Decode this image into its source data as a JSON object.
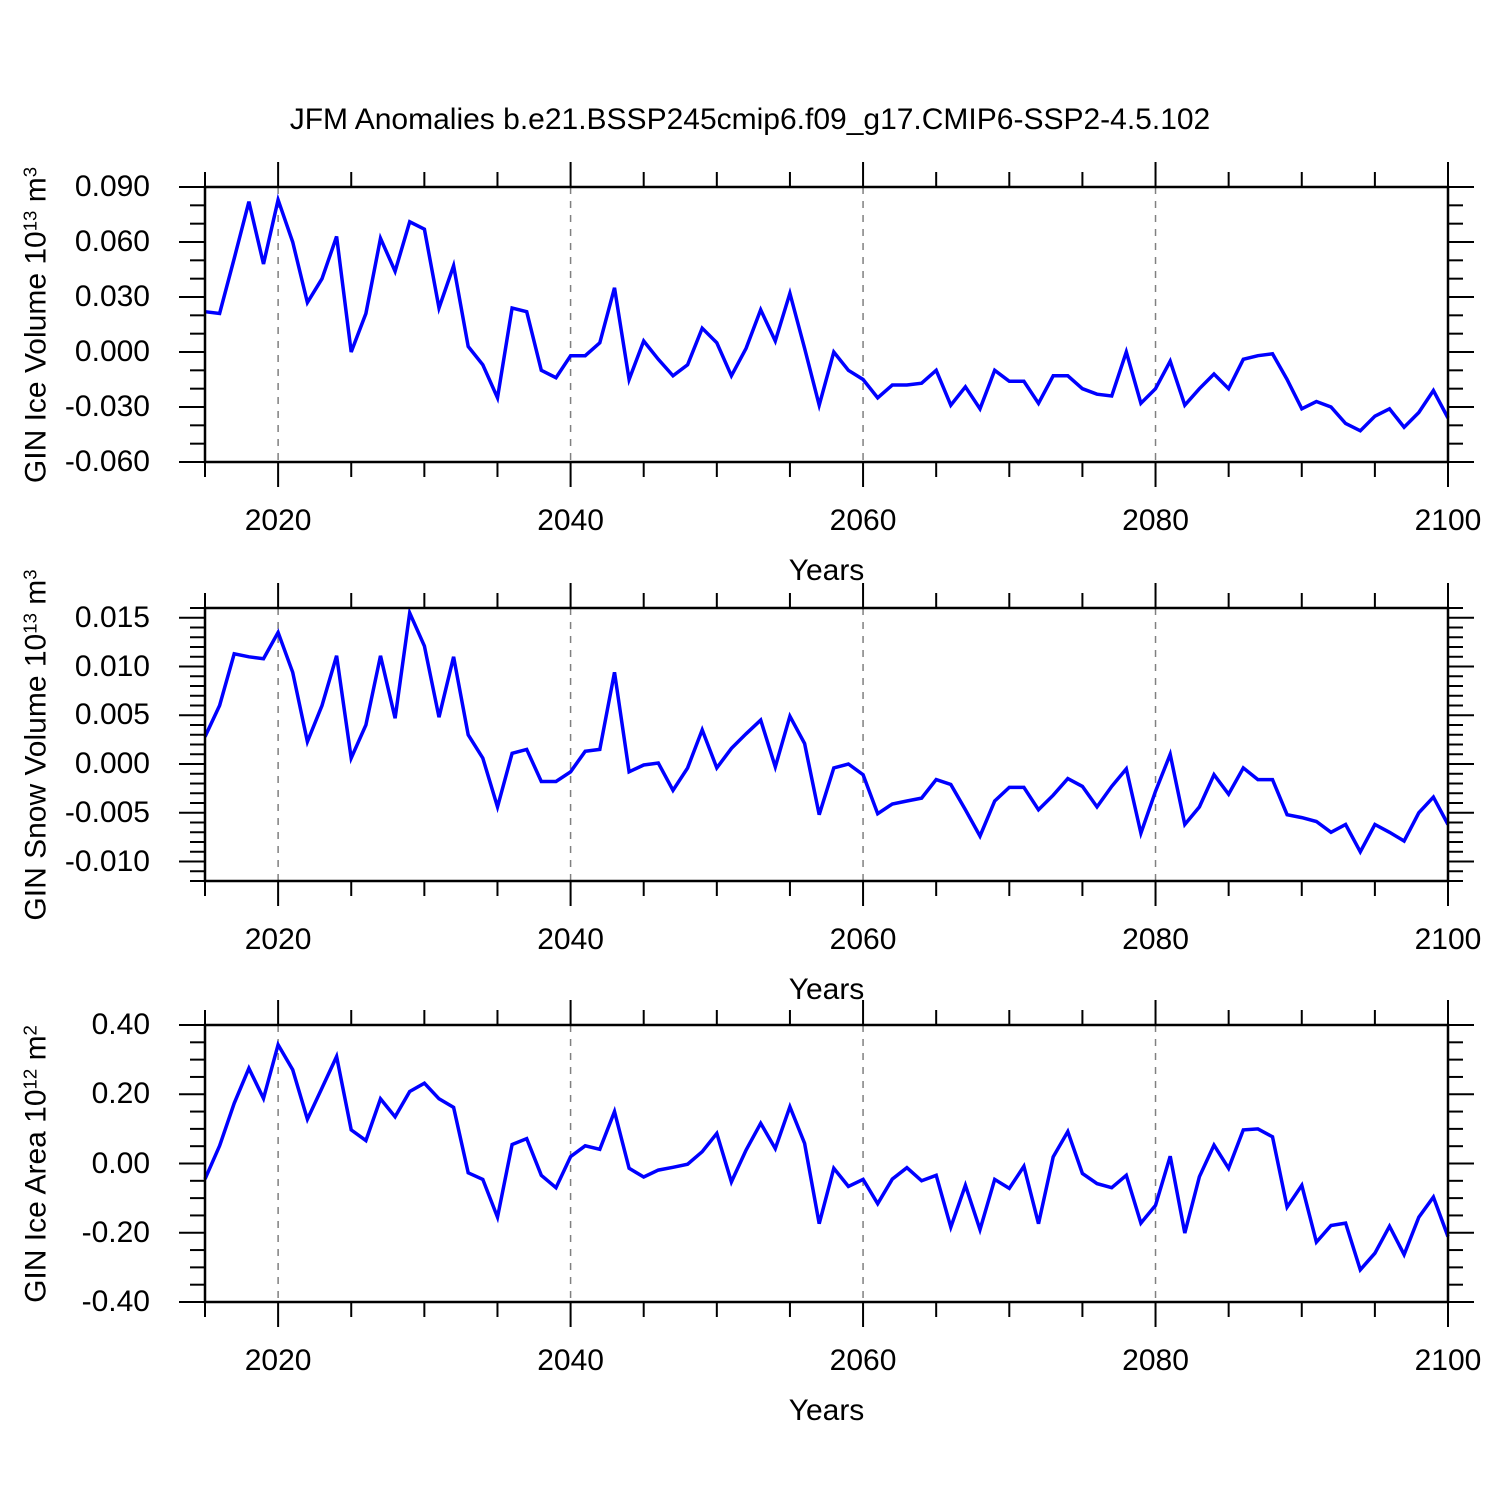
{
  "title": "JFM Anomalies b.e21.BSSP245cmip6.f09_g17.CMIP6-SSP2-4.5.102",
  "line_color": "#0000ff",
  "chart_data": [
    {
      "id": "gin-ice-volume",
      "type": "line",
      "ylabel": {
        "label": "GIN Ice Volume",
        "scale": "10",
        "scale_exp": "13",
        "unit": "m",
        "unit_exp": "3"
      },
      "xlabel": "Years",
      "x_start": 2015,
      "x_end": 2100,
      "x_step": 1,
      "ylim": [
        -0.06,
        0.09
      ],
      "ytick_labels": [
        "0.090",
        "0.060",
        "0.030",
        "0.000",
        "-0.030",
        "-0.060"
      ],
      "ytick_values": [
        0.09,
        0.06,
        0.03,
        0.0,
        -0.03,
        -0.06
      ],
      "y_minor_step": 0.01,
      "xtick_labels": [
        "2020",
        "2040",
        "2060",
        "2080",
        "2100"
      ],
      "xtick_values": [
        2020,
        2040,
        2060,
        2080,
        2100
      ],
      "x_minor_step": 5,
      "gridline_x": [
        2020,
        2040,
        2060,
        2080
      ],
      "grid": true,
      "legend": "none",
      "values": [
        0.022,
        0.021,
        0.051,
        0.082,
        0.048,
        0.083,
        0.06,
        0.027,
        0.04,
        0.063,
        0.0,
        0.021,
        0.062,
        0.044,
        0.071,
        0.067,
        0.024,
        0.047,
        0.003,
        -0.007,
        -0.025,
        0.024,
        0.022,
        -0.01,
        -0.014,
        -0.002,
        -0.002,
        0.005,
        0.035,
        -0.015,
        0.006,
        -0.004,
        -0.013,
        -0.007,
        0.013,
        0.005,
        -0.013,
        0.002,
        0.023,
        0.006,
        0.032,
        0.002,
        -0.029,
        0.0,
        -0.01,
        -0.015,
        -0.025,
        -0.018,
        -0.018,
        -0.017,
        -0.01,
        -0.029,
        -0.019,
        -0.031,
        -0.01,
        -0.016,
        -0.016,
        -0.028,
        -0.013,
        -0.013,
        -0.02,
        -0.023,
        -0.024,
        0.0,
        -0.028,
        -0.02,
        -0.005,
        -0.029,
        -0.02,
        -0.012,
        -0.02,
        -0.004,
        -0.002,
        -0.001,
        -0.015,
        -0.031,
        -0.027,
        -0.03,
        -0.039,
        -0.043,
        -0.035,
        -0.031,
        -0.041,
        -0.033,
        -0.021,
        -0.036
      ]
    },
    {
      "id": "gin-snow-volume",
      "type": "line",
      "ylabel": {
        "label": "GIN Snow Volume",
        "scale": "10",
        "scale_exp": "13",
        "unit": "m",
        "unit_exp": "3"
      },
      "xlabel": "Years",
      "x_start": 2015,
      "x_end": 2100,
      "x_step": 1,
      "ylim": [
        -0.012,
        0.016
      ],
      "ytick_labels": [
        "0.015",
        "0.010",
        "0.005",
        "0.000",
        "-0.005",
        "-0.010"
      ],
      "ytick_values": [
        0.015,
        0.01,
        0.005,
        0.0,
        -0.005,
        -0.01
      ],
      "y_minor_step": 0.001,
      "xtick_labels": [
        "2020",
        "2040",
        "2060",
        "2080",
        "2100"
      ],
      "xtick_values": [
        2020,
        2040,
        2060,
        2080,
        2100
      ],
      "x_minor_step": 5,
      "gridline_x": [
        2020,
        2040,
        2060,
        2080
      ],
      "grid": true,
      "legend": "none",
      "values": [
        0.0028,
        0.006,
        0.0113,
        0.011,
        0.0108,
        0.0135,
        0.0094,
        0.0023,
        0.006,
        0.0111,
        0.0006,
        0.004,
        0.0111,
        0.0047,
        0.0155,
        0.0121,
        0.0048,
        0.011,
        0.003,
        0.0006,
        -0.0044,
        0.0011,
        0.0015,
        -0.0018,
        -0.0018,
        -0.0008,
        0.0013,
        0.0015,
        0.0094,
        -0.0008,
        -0.0001,
        0.0001,
        -0.0027,
        -0.0004,
        0.0035,
        -0.0004,
        0.0016,
        0.0031,
        0.0045,
        -0.0003,
        0.0049,
        0.0021,
        -0.0052,
        -0.0004,
        0.0,
        -0.0011,
        -0.0051,
        -0.0041,
        -0.0038,
        -0.0035,
        -0.0016,
        -0.0021,
        -0.0047,
        -0.0074,
        -0.0038,
        -0.0024,
        -0.0024,
        -0.0047,
        -0.0032,
        -0.0015,
        -0.0023,
        -0.0044,
        -0.0023,
        -0.0005,
        -0.0071,
        -0.0028,
        0.001,
        -0.0062,
        -0.0044,
        -0.0011,
        -0.0031,
        -0.0004,
        -0.0016,
        -0.0016,
        -0.0052,
        -0.0055,
        -0.0059,
        -0.007,
        -0.0062,
        -0.009,
        -0.0062,
        -0.007,
        -0.0079,
        -0.005,
        -0.0034,
        -0.0062
      ]
    },
    {
      "id": "gin-ice-area",
      "type": "line",
      "ylabel": {
        "label": "GIN Ice Area",
        "scale": "10",
        "scale_exp": "12",
        "unit": "m",
        "unit_exp": "2"
      },
      "xlabel": "Years",
      "x_start": 2015,
      "x_end": 2100,
      "x_step": 1,
      "ylim": [
        -0.4,
        0.4
      ],
      "ytick_labels": [
        "0.40",
        "0.20",
        "0.00",
        "-0.20",
        "-0.40"
      ],
      "ytick_values": [
        0.4,
        0.2,
        0.0,
        -0.2,
        -0.4
      ],
      "y_minor_step": 0.05,
      "xtick_labels": [
        "2020",
        "2040",
        "2060",
        "2080",
        "2100"
      ],
      "xtick_values": [
        2020,
        2040,
        2060,
        2080,
        2100
      ],
      "x_minor_step": 5,
      "gridline_x": [
        2020,
        2040,
        2060,
        2080
      ],
      "grid": true,
      "legend": "none",
      "values": [
        -0.045,
        0.051,
        0.174,
        0.275,
        0.188,
        0.343,
        0.271,
        0.128,
        0.218,
        0.309,
        0.097,
        0.066,
        0.187,
        0.135,
        0.208,
        0.232,
        0.187,
        0.162,
        -0.027,
        -0.046,
        -0.155,
        0.055,
        0.072,
        -0.034,
        -0.07,
        0.02,
        0.051,
        0.041,
        0.15,
        -0.014,
        -0.039,
        -0.019,
        -0.011,
        -0.002,
        0.034,
        0.087,
        -0.053,
        0.039,
        0.116,
        0.043,
        0.164,
        0.058,
        -0.174,
        -0.014,
        -0.066,
        -0.046,
        -0.116,
        -0.045,
        -0.012,
        -0.05,
        -0.034,
        -0.184,
        -0.063,
        -0.191,
        -0.046,
        -0.072,
        -0.008,
        -0.174,
        0.019,
        0.092,
        -0.029,
        -0.058,
        -0.07,
        -0.034,
        -0.172,
        -0.121,
        0.021,
        -0.201,
        -0.038,
        0.053,
        -0.014,
        0.097,
        0.1,
        0.077,
        -0.126,
        -0.063,
        -0.227,
        -0.179,
        -0.172,
        -0.307,
        -0.259,
        -0.181,
        -0.263,
        -0.155,
        -0.097,
        -0.211
      ]
    }
  ]
}
